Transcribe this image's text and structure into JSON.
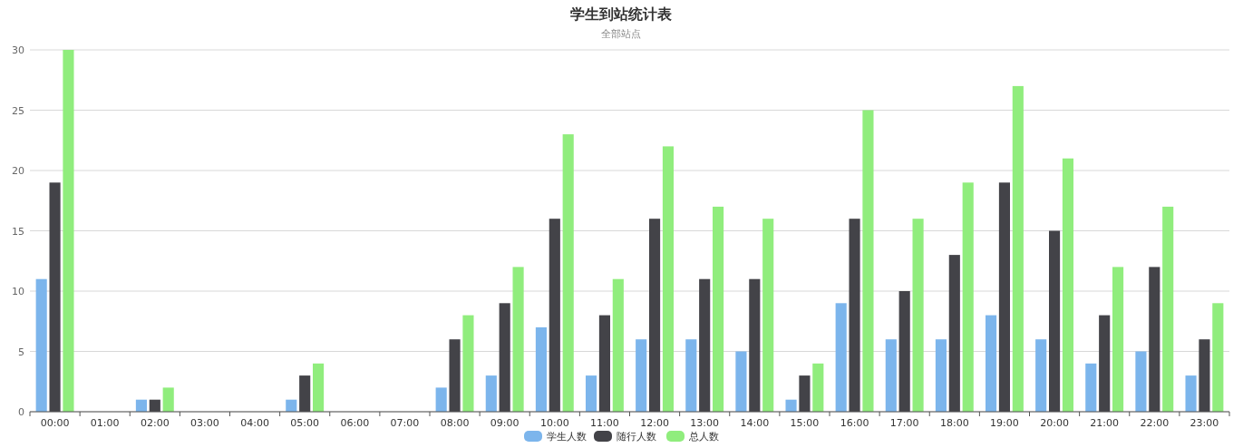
{
  "chart_data": {
    "type": "bar",
    "title": "学生到站统计表",
    "subtitle": "全部站点",
    "categories": [
      "00:00",
      "01:00",
      "02:00",
      "03:00",
      "04:00",
      "05:00",
      "06:00",
      "07:00",
      "08:00",
      "09:00",
      "10:00",
      "11:00",
      "12:00",
      "13:00",
      "14:00",
      "15:00",
      "16:00",
      "17:00",
      "18:00",
      "19:00",
      "20:00",
      "21:00",
      "22:00",
      "23:00"
    ],
    "series": [
      {
        "name": "学生人数",
        "color": "#7cb5ec",
        "values": [
          11,
          0,
          1,
          0,
          0,
          1,
          0,
          0,
          2,
          3,
          7,
          3,
          6,
          6,
          5,
          1,
          9,
          6,
          6,
          8,
          6,
          4,
          5,
          3
        ]
      },
      {
        "name": "随行人数",
        "color": "#434348",
        "values": [
          19,
          0,
          1,
          0,
          0,
          3,
          0,
          0,
          6,
          9,
          16,
          8,
          16,
          11,
          11,
          3,
          16,
          10,
          13,
          19,
          15,
          8,
          12,
          6
        ]
      },
      {
        "name": "总人数",
        "color": "#90ed7d",
        "values": [
          30,
          0,
          2,
          0,
          0,
          4,
          0,
          0,
          8,
          12,
          23,
          11,
          22,
          17,
          16,
          4,
          25,
          16,
          19,
          27,
          21,
          12,
          17,
          9
        ]
      }
    ],
    "ylim": [
      0,
      30
    ],
    "yticks": [
      0,
      5,
      10,
      15,
      20,
      25,
      30
    ],
    "grid": "y",
    "legend": "bottom"
  }
}
